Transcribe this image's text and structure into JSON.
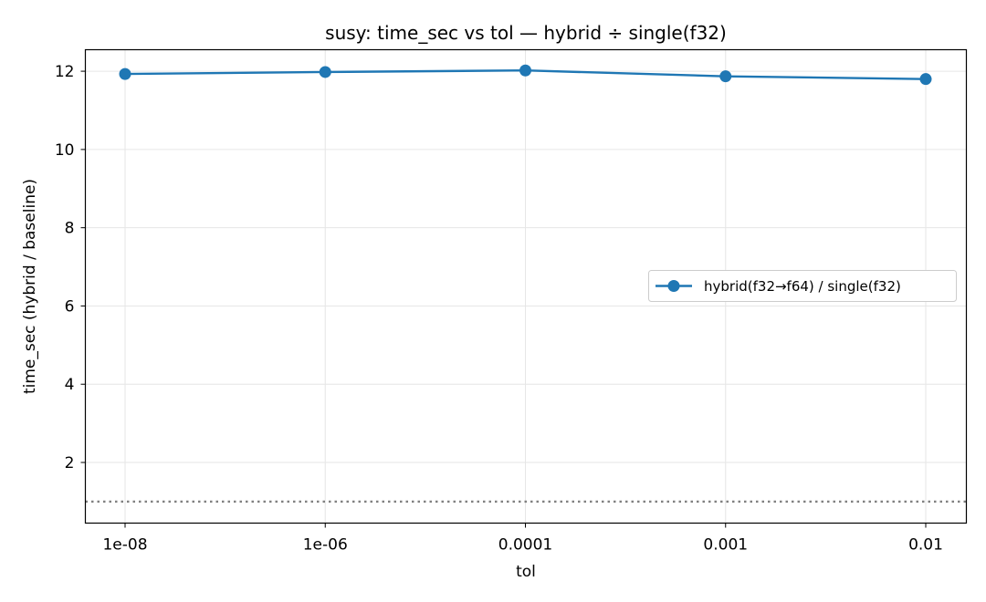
{
  "chart_data": {
    "type": "line",
    "title": "susy: time_sec vs tol — hybrid ÷ single(f32)",
    "xlabel": "tol",
    "ylabel": "time_sec (hybrid / baseline)",
    "categories": [
      "1e-08",
      "1e-06",
      "0.0001",
      "0.001",
      "0.01"
    ],
    "ylim": [
      0.45,
      12.55
    ],
    "yticks": [
      2,
      4,
      6,
      8,
      10,
      12
    ],
    "grid": true,
    "legend_position": "right",
    "reference_line": 1.0,
    "series": [
      {
        "name": "hybrid(f32→f64) / single(f32)",
        "values": [
          11.93,
          11.98,
          12.02,
          11.87,
          11.8
        ],
        "color": "#1f77b4",
        "marker": "circle"
      }
    ],
    "reference_color": "#808080"
  }
}
